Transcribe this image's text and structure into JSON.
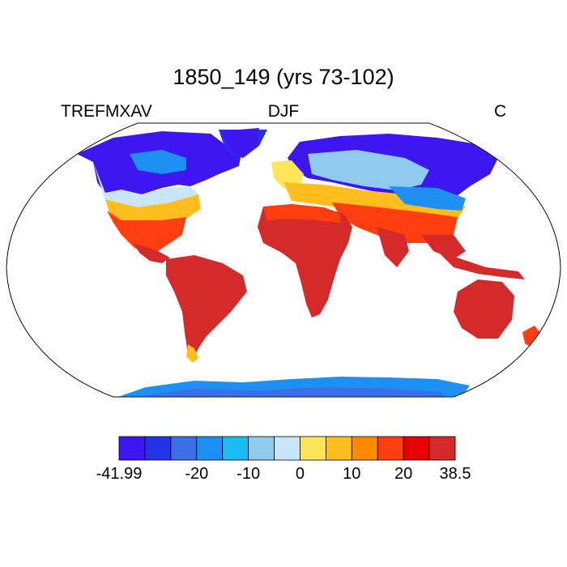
{
  "title": "1850_149 (yrs 73-102)",
  "left_label": "TREFMXAV",
  "center_label": "DJF",
  "right_label": "C",
  "colorbar": {
    "colors": [
      "#3e16f2",
      "#2234e6",
      "#3a6fe8",
      "#1e90f4",
      "#19bdf4",
      "#8ecbef",
      "#c8e6f7",
      "#ffe55a",
      "#ffbe1d",
      "#ff8a00",
      "#ff3e10",
      "#e80000",
      "#d42a2a"
    ],
    "tick_labels": [
      {
        "text": "-41.99",
        "index": 0
      },
      {
        "text": "-20",
        "index": 3
      },
      {
        "text": "-10",
        "index": 5
      },
      {
        "text": "0",
        "index": 7
      },
      {
        "text": "10",
        "index": 9
      },
      {
        "text": "20",
        "index": 11
      },
      {
        "text": "38.5",
        "index": 13
      }
    ]
  }
}
